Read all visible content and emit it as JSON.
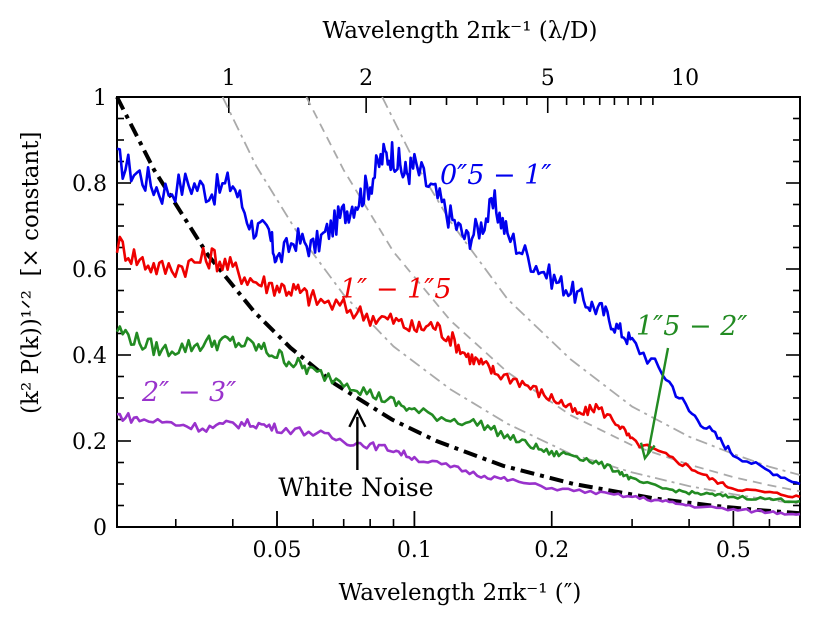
{
  "chart_data": {
    "type": "line",
    "x_scale": "log",
    "xlim": [
      0.0223,
      0.7
    ],
    "ylim": [
      0,
      1
    ],
    "xlabel": "Wavelength 2πk⁻¹ (″)",
    "ylabel": "(k² P(k))¹ᐟ²",
    "ylabel_extra": "[× constant]",
    "top_xlabel": "Wavelength 2πk⁻¹ (λ/D)",
    "x_ticks": [
      0.05,
      0.1,
      0.2,
      0.5
    ],
    "x_tick_labels": [
      "0.05",
      "0.1",
      "0.2",
      "0.5"
    ],
    "y_ticks": [
      0,
      0.2,
      0.4,
      0.6,
      0.8,
      1
    ],
    "y_tick_labels": [
      "0",
      "0.2",
      "0.4",
      "0.6",
      "0.8",
      "1"
    ],
    "top_ticks": [
      {
        "x": 0.0392,
        "label": "1"
      },
      {
        "x": 0.0784,
        "label": "2"
      },
      {
        "x": 0.196,
        "label": "5"
      },
      {
        "x": 0.392,
        "label": "10"
      }
    ],
    "series": [
      {
        "name": "0″5 − 1″",
        "color": "#0000ee",
        "x": [
          0.0223,
          0.025,
          0.028,
          0.032,
          0.036,
          0.04,
          0.044,
          0.048,
          0.05,
          0.055,
          0.06,
          0.065,
          0.07,
          0.075,
          0.08,
          0.085,
          0.09,
          0.095,
          0.1,
          0.11,
          0.12,
          0.13,
          0.14,
          0.15,
          0.16,
          0.18,
          0.2,
          0.22,
          0.24,
          0.26,
          0.28,
          0.3,
          0.35,
          0.4,
          0.45,
          0.5,
          0.6,
          0.7
        ],
        "y": [
          0.85,
          0.82,
          0.78,
          0.8,
          0.78,
          0.8,
          0.7,
          0.68,
          0.62,
          0.67,
          0.65,
          0.69,
          0.73,
          0.76,
          0.8,
          0.86,
          0.87,
          0.82,
          0.84,
          0.78,
          0.72,
          0.67,
          0.7,
          0.75,
          0.68,
          0.62,
          0.58,
          0.55,
          0.52,
          0.5,
          0.46,
          0.43,
          0.36,
          0.27,
          0.22,
          0.17,
          0.13,
          0.1
        ]
      },
      {
        "name": "1″ − 1″5",
        "color": "#ee0000",
        "x": [
          0.0223,
          0.025,
          0.028,
          0.032,
          0.036,
          0.04,
          0.045,
          0.05,
          0.055,
          0.06,
          0.07,
          0.08,
          0.09,
          0.1,
          0.11,
          0.12,
          0.13,
          0.14,
          0.15,
          0.17,
          0.19,
          0.21,
          0.23,
          0.25,
          0.28,
          0.3,
          0.35,
          0.4,
          0.45,
          0.5,
          0.6,
          0.7
        ],
        "y": [
          0.66,
          0.62,
          0.6,
          0.61,
          0.63,
          0.6,
          0.57,
          0.56,
          0.55,
          0.53,
          0.51,
          0.49,
          0.48,
          0.46,
          0.47,
          0.44,
          0.4,
          0.38,
          0.36,
          0.34,
          0.31,
          0.29,
          0.26,
          0.28,
          0.24,
          0.2,
          0.17,
          0.14,
          0.11,
          0.09,
          0.08,
          0.07
        ]
      },
      {
        "name": "1″5 − 2″",
        "color": "#228b22",
        "x": [
          0.0223,
          0.025,
          0.028,
          0.032,
          0.036,
          0.04,
          0.045,
          0.05,
          0.055,
          0.06,
          0.07,
          0.08,
          0.09,
          0.1,
          0.12,
          0.14,
          0.16,
          0.18,
          0.2,
          0.22,
          0.25,
          0.28,
          0.3,
          0.35,
          0.4,
          0.45,
          0.5,
          0.6,
          0.7
        ],
        "y": [
          0.46,
          0.43,
          0.41,
          0.42,
          0.43,
          0.43,
          0.42,
          0.4,
          0.38,
          0.36,
          0.34,
          0.31,
          0.29,
          0.27,
          0.25,
          0.24,
          0.21,
          0.19,
          0.17,
          0.17,
          0.15,
          0.13,
          0.11,
          0.09,
          0.08,
          0.075,
          0.07,
          0.065,
          0.06
        ]
      },
      {
        "name": "2″ − 3″",
        "color": "#9932cc",
        "x": [
          0.0223,
          0.025,
          0.03,
          0.035,
          0.04,
          0.045,
          0.05,
          0.06,
          0.07,
          0.08,
          0.09,
          0.1,
          0.12,
          0.14,
          0.16,
          0.2,
          0.25,
          0.3,
          0.35,
          0.4,
          0.5,
          0.6,
          0.7
        ],
        "y": [
          0.26,
          0.25,
          0.24,
          0.23,
          0.24,
          0.24,
          0.23,
          0.22,
          0.2,
          0.19,
          0.18,
          0.16,
          0.14,
          0.12,
          0.11,
          0.09,
          0.08,
          0.07,
          0.06,
          0.05,
          0.04,
          0.035,
          0.03
        ]
      }
    ],
    "reference_curves": [
      {
        "style": "dash-dot-thick",
        "color": "#000000",
        "x": [
          0.0223,
          0.0269,
          0.0352,
          0.0446,
          0.0535,
          0.0669,
          0.0893,
          0.1118,
          0.1566,
          0.2237,
          0.3351,
          0.4469,
          0.5585,
          0.7
        ],
        "y": [
          1,
          0.83,
          0.634,
          0.5,
          0.417,
          0.333,
          0.25,
          0.2,
          0.142,
          0.1,
          0.0666,
          0.05,
          0.04,
          0.0319
        ]
      },
      {
        "style": "dash-dot-thin",
        "color": "#aaaaaa",
        "x": [
          0.038,
          0.045,
          0.055,
          0.07,
          0.09,
          0.12,
          0.16,
          0.22,
          0.3,
          0.4,
          0.5,
          0.6,
          0.7
        ],
        "y": [
          1,
          0.84,
          0.69,
          0.54,
          0.42,
          0.32,
          0.24,
          0.17,
          0.127,
          0.095,
          0.076,
          0.063,
          0.054
        ]
      },
      {
        "style": "dashed",
        "color": "#aaaaaa",
        "x": [
          0.058,
          0.07,
          0.09,
          0.12,
          0.16,
          0.22,
          0.3,
          0.4,
          0.5,
          0.6,
          0.7
        ],
        "y": [
          1,
          0.83,
          0.64,
          0.48,
          0.36,
          0.26,
          0.19,
          0.145,
          0.116,
          0.097,
          0.083
        ]
      },
      {
        "style": "dash-dot-thin",
        "color": "#aaaaaa",
        "x": [
          0.085,
          0.1,
          0.12,
          0.16,
          0.22,
          0.3,
          0.4,
          0.5,
          0.6,
          0.7
        ],
        "y": [
          1,
          0.85,
          0.71,
          0.53,
          0.39,
          0.28,
          0.21,
          0.17,
          0.14,
          0.121
        ]
      }
    ],
    "annotations": [
      {
        "text": "White Noise",
        "arrow_to": {
          "x": 0.075,
          "y": 0.27
        }
      },
      {
        "text": "",
        "arrow_from_label": "1″5 − 2″",
        "arrow_to": {
          "x": 0.32,
          "y": 0.16
        }
      }
    ],
    "grid": false,
    "legend": "inline labels"
  }
}
